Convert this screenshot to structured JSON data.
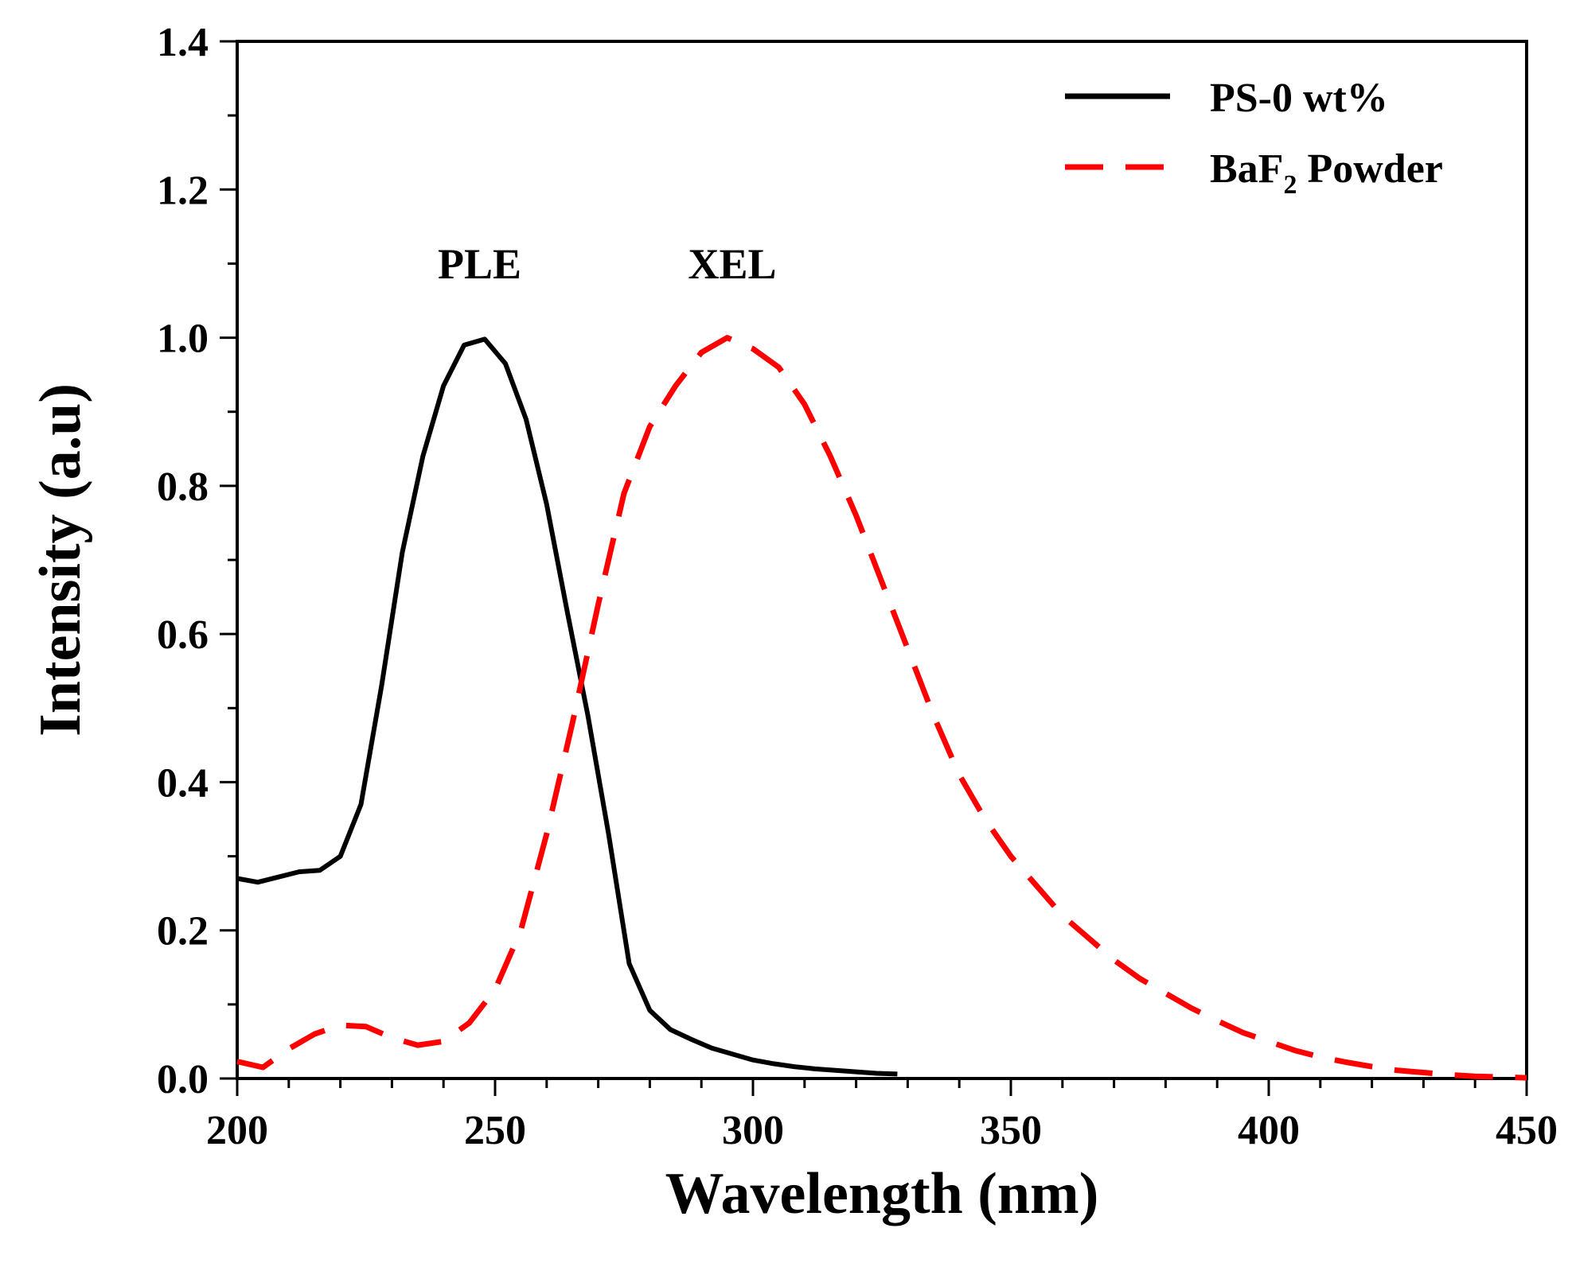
{
  "chart_data": {
    "type": "line",
    "title": "",
    "xlabel": "Wavelength (nm)",
    "ylabel": "Intensity (a.u)",
    "xlim": [
      200,
      450
    ],
    "ylim": [
      0.0,
      1.4
    ],
    "x_ticks": [
      200,
      250,
      300,
      350,
      400,
      450
    ],
    "y_ticks": [
      0.0,
      0.2,
      0.4,
      0.6,
      0.8,
      1.0,
      1.2,
      1.4
    ],
    "x_tick_labels": [
      "200",
      "250",
      "300",
      "350",
      "400",
      "450"
    ],
    "y_tick_labels": [
      "0.0",
      "0.2",
      "0.4",
      "0.6",
      "0.8",
      "1.0",
      "1.2",
      "1.4"
    ],
    "grid": false,
    "legend_position": "top-right",
    "legend": {
      "entries": [
        {
          "label": "PS-0 wt%"
        },
        {
          "label_main": "BaF",
          "label_sub": "2",
          "label_rest": " Powder"
        }
      ]
    },
    "annotations": [
      {
        "text": "PLE",
        "x": 247,
        "y": 1.08
      },
      {
        "text": "XEL",
        "x": 296,
        "y": 1.08
      }
    ],
    "series": [
      {
        "name": "PS-0 wt%",
        "color": "#000000",
        "dash": "solid",
        "x": [
          200,
          204,
          208,
          212,
          216,
          220,
          224,
          228,
          232,
          236,
          240,
          244,
          248,
          252,
          256,
          260,
          264,
          268,
          272,
          276,
          280,
          284,
          288,
          292,
          296,
          300,
          304,
          308,
          312,
          316,
          320,
          324,
          328
        ],
        "y": [
          0.27,
          0.265,
          0.272,
          0.279,
          0.281,
          0.3,
          0.37,
          0.53,
          0.71,
          0.84,
          0.935,
          0.99,
          0.998,
          0.965,
          0.89,
          0.775,
          0.63,
          0.49,
          0.33,
          0.155,
          0.092,
          0.066,
          0.053,
          0.041,
          0.033,
          0.025,
          0.02,
          0.016,
          0.013,
          0.011,
          0.009,
          0.007,
          0.006
        ]
      },
      {
        "name": "BaF2 Powder",
        "color": "#ff0000",
        "dash": "dashed",
        "x": [
          200,
          205,
          210,
          215,
          220,
          225,
          230,
          235,
          240,
          245,
          250,
          255,
          260,
          265,
          270,
          275,
          280,
          285,
          290,
          295,
          300,
          305,
          310,
          315,
          320,
          325,
          330,
          335,
          340,
          345,
          350,
          355,
          360,
          365,
          370,
          375,
          380,
          385,
          390,
          395,
          400,
          405,
          410,
          415,
          420,
          425,
          430,
          435,
          440,
          445,
          450
        ],
        "y": [
          0.023,
          0.015,
          0.04,
          0.06,
          0.072,
          0.07,
          0.055,
          0.045,
          0.05,
          0.075,
          0.12,
          0.2,
          0.33,
          0.48,
          0.64,
          0.79,
          0.88,
          0.935,
          0.98,
          1.0,
          0.985,
          0.96,
          0.91,
          0.84,
          0.76,
          0.67,
          0.58,
          0.49,
          0.41,
          0.35,
          0.3,
          0.26,
          0.22,
          0.19,
          0.16,
          0.135,
          0.115,
          0.095,
          0.078,
          0.062,
          0.05,
          0.038,
          0.029,
          0.022,
          0.016,
          0.011,
          0.008,
          0.005,
          0.003,
          0.002,
          0.001
        ]
      }
    ]
  }
}
